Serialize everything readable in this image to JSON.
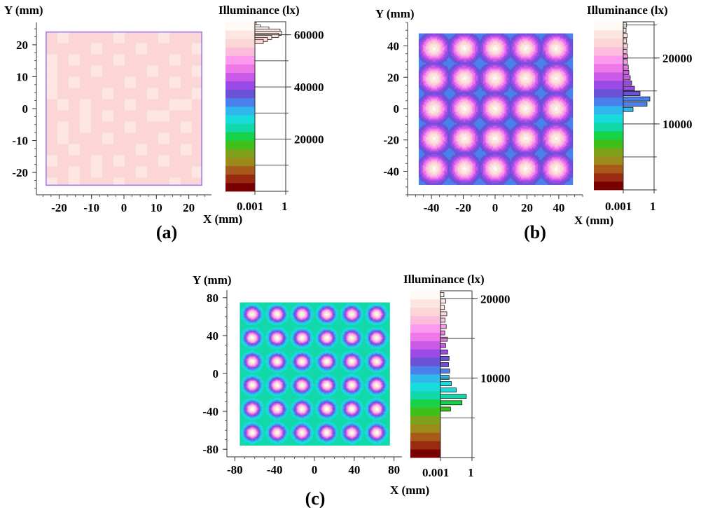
{
  "figure": {
    "panel_labels": [
      "(a)",
      "(b)",
      "(c)"
    ]
  },
  "colormap": [
    "#7a0000",
    "#9a2a10",
    "#a85a1a",
    "#9c8a1a",
    "#7fa01a",
    "#3fbf1a",
    "#18d24a",
    "#10d8a8",
    "#18dcdc",
    "#30b8ee",
    "#4a80ec",
    "#6a52d6",
    "#9a4ae6",
    "#cc5ae8",
    "#ee78e8",
    "#fb9aee",
    "#fcbcdc",
    "#fcd6d6",
    "#fde6e2",
    "#fffaf5"
  ],
  "chart_data": [
    {
      "type": "heatmap",
      "panel": "(a)",
      "xlabel": "X (mm)",
      "ylabel": "Y (mm)",
      "x_ticks": [
        -20,
        -10,
        0,
        10,
        20
      ],
      "y_ticks": [
        20,
        10,
        0,
        -10,
        -20
      ],
      "x_tick_labels": [
        "-20",
        "-10",
        "0",
        "10",
        "20"
      ],
      "y_tick_labels": [
        "20",
        "10",
        "0",
        "-10",
        "-20"
      ],
      "xlim": [
        -27,
        27
      ],
      "ylim": [
        -27,
        27
      ],
      "map_extent": [
        -24,
        24
      ],
      "pattern": "uniform",
      "grid_n": 0,
      "base_value": 57500,
      "colorbar": {
        "label": "Illuminance (lx)",
        "range": [
          0,
          65000
        ],
        "ticks": [
          60000,
          40000,
          20000
        ],
        "tick_labels": [
          "60000",
          "40000",
          "20000"
        ],
        "histogram_ticks": [
          "0.001",
          "1"
        ],
        "histogram": [
          {
            "value": 63800,
            "freq": 0.05
          },
          {
            "value": 63000,
            "freq": 0.2
          },
          {
            "value": 62200,
            "freq": 0.5
          },
          {
            "value": 61400,
            "freq": 0.9
          },
          {
            "value": 60600,
            "freq": 0.95
          },
          {
            "value": 59800,
            "freq": 0.85
          },
          {
            "value": 59000,
            "freq": 0.6
          },
          {
            "value": 58200,
            "freq": 0.45
          },
          {
            "value": 57400,
            "freq": 0.3
          }
        ]
      }
    },
    {
      "type": "heatmap",
      "panel": "(b)",
      "xlabel": "X (mm)",
      "ylabel": "Y (mm)",
      "x_ticks": [
        -40,
        -20,
        0,
        20,
        40
      ],
      "y_ticks": [
        40,
        20,
        0,
        -20,
        -40
      ],
      "x_tick_labels": [
        "-40",
        "-20",
        "0",
        "20",
        "40"
      ],
      "y_tick_labels": [
        "40",
        "20",
        "0",
        "-20",
        "-40"
      ],
      "xlim": [
        -55,
        55
      ],
      "ylim": [
        -55,
        55
      ],
      "map_extent": [
        -48,
        48
      ],
      "pattern": "spots",
      "grid_n": 5,
      "peak_value": 24500,
      "valley_value": 12500,
      "spot_width": 0.28,
      "colorbar": {
        "label": "Illuminance (lx)",
        "range": [
          0,
          25500
        ],
        "ticks": [
          20000,
          10000
        ],
        "tick_labels": [
          "20000",
          "10000"
        ],
        "histogram_ticks": [
          "0.001",
          "1"
        ],
        "histogram": [
          {
            "value": 25000,
            "freq": 0.12
          },
          {
            "value": 24200,
            "freq": 0.1
          },
          {
            "value": 23400,
            "freq": 0.14
          },
          {
            "value": 22600,
            "freq": 0.12
          },
          {
            "value": 21800,
            "freq": 0.15
          },
          {
            "value": 21000,
            "freq": 0.13
          },
          {
            "value": 20200,
            "freq": 0.16
          },
          {
            "value": 19400,
            "freq": 0.15
          },
          {
            "value": 18600,
            "freq": 0.18
          },
          {
            "value": 17800,
            "freq": 0.2
          },
          {
            "value": 17000,
            "freq": 0.25
          },
          {
            "value": 16200,
            "freq": 0.3
          },
          {
            "value": 15400,
            "freq": 0.4
          },
          {
            "value": 14600,
            "freq": 0.6
          },
          {
            "value": 13800,
            "freq": 0.95
          },
          {
            "value": 13000,
            "freq": 0.85
          },
          {
            "value": 12200,
            "freq": 0.35
          }
        ]
      }
    },
    {
      "type": "heatmap",
      "panel": "(c)",
      "xlabel": "X (mm)",
      "ylabel": "Y (mm)",
      "x_ticks": [
        -80,
        -40,
        0,
        40,
        80
      ],
      "y_ticks": [
        80,
        40,
        0,
        -40,
        -80
      ],
      "x_tick_labels": [
        "-80",
        "-40",
        "0",
        "40",
        "80"
      ],
      "y_tick_labels": [
        "80",
        "40",
        "0",
        "-40",
        "-80"
      ],
      "xlim": [
        -88,
        88
      ],
      "ylim": [
        -88,
        88
      ],
      "map_extent": [
        -75,
        75
      ],
      "pattern": "spots",
      "grid_n": 6,
      "peak_value": 20500,
      "valley_value": 7500,
      "spot_width": 0.2,
      "colorbar": {
        "label": "Illuminance (lx)",
        "range": [
          0,
          21000
        ],
        "ticks": [
          20000,
          10000
        ],
        "tick_labels": [
          "20000",
          "10000"
        ],
        "histogram_ticks": [
          "0.001",
          "1"
        ],
        "histogram": [
          {
            "value": 20500,
            "freq": 0.12
          },
          {
            "value": 19700,
            "freq": 0.18
          },
          {
            "value": 18900,
            "freq": 0.14
          },
          {
            "value": 18100,
            "freq": 0.22
          },
          {
            "value": 17300,
            "freq": 0.16
          },
          {
            "value": 16500,
            "freq": 0.2
          },
          {
            "value": 15700,
            "freq": 0.15
          },
          {
            "value": 14900,
            "freq": 0.24
          },
          {
            "value": 14100,
            "freq": 0.18
          },
          {
            "value": 13300,
            "freq": 0.25
          },
          {
            "value": 12500,
            "freq": 0.3
          },
          {
            "value": 11700,
            "freq": 0.28
          },
          {
            "value": 10900,
            "freq": 0.32
          },
          {
            "value": 10100,
            "freq": 0.3
          },
          {
            "value": 9300,
            "freq": 0.38
          },
          {
            "value": 8500,
            "freq": 0.55
          },
          {
            "value": 7700,
            "freq": 0.9
          },
          {
            "value": 6900,
            "freq": 0.75
          },
          {
            "value": 6100,
            "freq": 0.35
          }
        ]
      }
    }
  ]
}
